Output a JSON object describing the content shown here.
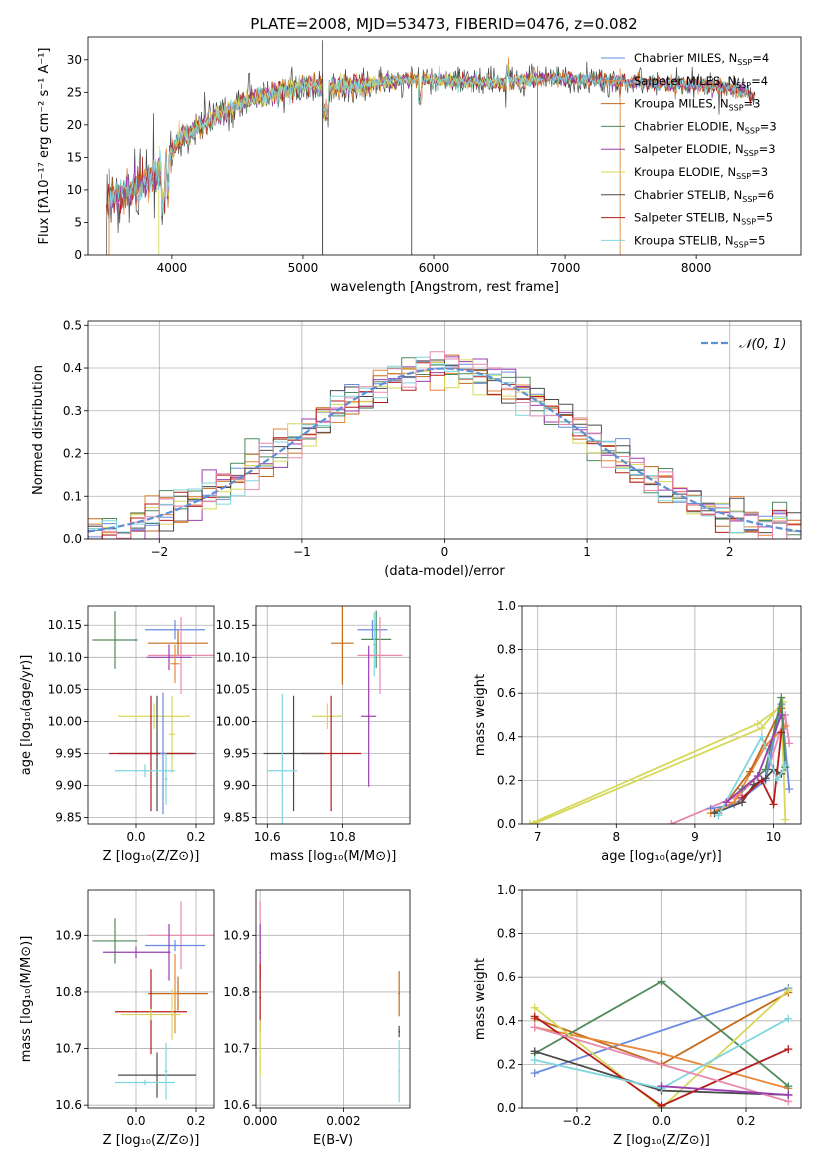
{
  "figure_title": "PLATE=2008, MJD=53473, FIBERID=0476, z=0.082",
  "colors": {
    "Chabrier MILES": "#6a8ae0",
    "Salpeter MILES": "#e7873a",
    "Kroupa MILES": "#c46a1c",
    "Chabrier ELODIE": "#4f8a5c",
    "Salpeter ELODIE": "#9a3fb0",
    "Kroupa ELODIE": "#d6d85a",
    "Chabrier STELIB": "#4a4a4a",
    "Salpeter STELIB": "#b51c1c",
    "Kroupa STELIB": "#7fd6dc",
    "pink": "#e88aaf",
    "normal_curve": "#5b8fd6",
    "grid": "#b0b0b0"
  },
  "chart_data": [
    {
      "id": "spectrum",
      "type": "line",
      "xlabel": "wavelength [Angstrom, rest frame]",
      "ylabel": "Flux [fλ10⁻¹⁷ erg cm⁻² s⁻¹ A⁻¹]",
      "xlim": [
        3360,
        8800
      ],
      "ylim": [
        0,
        33.5
      ],
      "xticks": [
        "4000",
        "5000",
        "6000",
        "7000",
        "8000"
      ],
      "yticks": [
        "0",
        "5",
        "10",
        "15",
        "20",
        "25",
        "30"
      ],
      "continuum": {
        "x": [
          3500,
          3700,
          3900,
          4050,
          4200,
          4400,
          4600,
          4800,
          5000,
          5200,
          5500,
          5800,
          6100,
          6500,
          6900,
          7300,
          7700,
          8000,
          8300,
          8450
        ],
        "y": [
          8.5,
          10.0,
          12.5,
          17.5,
          19.5,
          22.0,
          24.0,
          25.0,
          26.0,
          25.8,
          26.3,
          27.0,
          26.8,
          26.5,
          27.2,
          26.8,
          26.4,
          26.0,
          25.5,
          24.5
        ]
      },
      "legend": [
        {
          "name": "Chabrier MILES",
          "nssp": "4",
          "imf": "Chabrier",
          "lib": "MILES"
        },
        {
          "name": "Salpeter MILES",
          "nssp": "4",
          "imf": "Salpeter",
          "lib": "MILES"
        },
        {
          "name": "Kroupa MILES",
          "nssp": "3",
          "imf": "Kroupa",
          "lib": "MILES"
        },
        {
          "name": "Chabrier ELODIE",
          "nssp": "3",
          "imf": "Chabrier",
          "lib": "ELODIE"
        },
        {
          "name": "Salpeter ELODIE",
          "nssp": "3",
          "imf": "Salpeter",
          "lib": "ELODIE"
        },
        {
          "name": "Kroupa ELODIE",
          "nssp": "3",
          "imf": "Kroupa",
          "lib": "ELODIE"
        },
        {
          "name": "Chabrier STELIB",
          "nssp": "6",
          "imf": "Chabrier",
          "lib": "STELIB"
        },
        {
          "name": "Salpeter STELIB",
          "nssp": "5",
          "imf": "Salpeter",
          "lib": "STELIB"
        },
        {
          "name": "Kroupa STELIB",
          "nssp": "5",
          "imf": "Kroupa",
          "lib": "STELIB"
        }
      ]
    },
    {
      "id": "residuals",
      "type": "line",
      "xlabel": "(data-model)/error",
      "ylabel": "Normed distribution",
      "xlim": [
        -2.5,
        2.5
      ],
      "ylim": [
        0,
        0.51
      ],
      "xticks": [
        "−2",
        "−1",
        "0",
        "1",
        "2"
      ],
      "yticks": [
        "0.0",
        "0.1",
        "0.2",
        "0.3",
        "0.4",
        "0.5"
      ],
      "legend_label": "𝒩(0, 1)",
      "bin_width": 0.1
    },
    {
      "id": "age_vs_Z",
      "type": "scatter",
      "xlabel": "Z [log₁₀(Z/Z⊙)]",
      "ylabel": "age  [log₁₀(age/yr)]",
      "xlim": [
        -0.16,
        0.26
      ],
      "ylim": [
        9.84,
        10.18
      ],
      "xticks": [
        "0.0",
        "0.2"
      ],
      "yticks": [
        "9.85",
        "9.90",
        "9.95",
        "10.00",
        "10.05",
        "10.10",
        "10.15"
      ],
      "points": [
        {
          "series": "Chabrier ELODIE",
          "x": -0.07,
          "y": 10.127,
          "xerr": 0.075,
          "yerr": 0.045
        },
        {
          "series": "Chabrier MILES",
          "x": 0.13,
          "y": 10.143,
          "xerr": 0.1,
          "yerr": 0.015
        },
        {
          "series": "Kroupa MILES",
          "x": 0.14,
          "y": 10.122,
          "xerr": 0.1,
          "yerr": 0.02
        },
        {
          "series": "pink",
          "x": 0.15,
          "y": 10.103,
          "xerr": 0.11,
          "yerr": 0.06
        },
        {
          "series": "Salpeter ELODIE",
          "x": 0.11,
          "y": 10.1,
          "xerr": 0.075,
          "yerr": 0.02
        },
        {
          "series": "Salpeter MILES",
          "x": 0.13,
          "y": 10.09,
          "xerr": 0.015,
          "yerr": 0.03
        },
        {
          "series": "Kroupa ELODIE",
          "x": 0.06,
          "y": 10.008,
          "xerr": 0.12,
          "yerr": 0.02
        },
        {
          "series": "Kroupa ELODIE",
          "x": 0.12,
          "y": 9.98,
          "xerr": 0.01,
          "yerr": 0.06
        },
        {
          "series": "Chabrier STELIB",
          "x": 0.07,
          "y": 9.95,
          "xerr": 0.13,
          "yerr": 0.09
        },
        {
          "series": "Salpeter STELIB",
          "x": 0.05,
          "y": 9.95,
          "xerr": 0.14,
          "yerr": 0.09
        },
        {
          "series": "Chabrier MILES",
          "x": 0.09,
          "y": 9.95,
          "xerr": 0.01,
          "yerr": 0.095
        },
        {
          "series": "Kroupa STELIB",
          "x": 0.03,
          "y": 9.923,
          "xerr": 0.1,
          "yerr": 0.01
        },
        {
          "series": "Kroupa STELIB",
          "x": 0.1,
          "y": 9.91,
          "xerr": 0.005,
          "yerr": 0.04
        }
      ]
    },
    {
      "id": "age_vs_mass",
      "type": "scatter",
      "xlabel": "mass [log₁₀(M/M⊙)]",
      "ylabel": "",
      "xlim": [
        10.57,
        10.98
      ],
      "ylim": [
        9.84,
        10.18
      ],
      "xticks": [
        "10.6",
        "10.8"
      ],
      "yticks": [
        "9.85",
        "9.90",
        "9.95",
        "10.00",
        "10.05",
        "10.10",
        "10.15"
      ],
      "points": [
        {
          "series": "Chabrier MILES",
          "x": 10.88,
          "y": 10.143,
          "xerr": 0.04,
          "yerr": 0.015
        },
        {
          "series": "Chabrier ELODIE",
          "x": 10.89,
          "y": 10.128,
          "xerr": 0.04,
          "yerr": 0.045
        },
        {
          "series": "Kroupa STELIB",
          "x": 10.885,
          "y": 10.12,
          "xerr": 0.003,
          "yerr": 0.05
        },
        {
          "series": "Kroupa MILES",
          "x": 10.8,
          "y": 10.122,
          "xerr": 0.03,
          "yerr": 0.065
        },
        {
          "series": "pink",
          "x": 10.9,
          "y": 10.103,
          "xerr": 0.06,
          "yerr": 0.06
        },
        {
          "series": "Kroupa ELODIE",
          "x": 10.76,
          "y": 10.008,
          "xerr": 0.04,
          "yerr": 0.02
        },
        {
          "series": "Salpeter ELODIE",
          "x": 10.87,
          "y": 10.008,
          "xerr": 0.02,
          "yerr": 0.11
        },
        {
          "series": "Salpeter STELIB",
          "x": 10.77,
          "y": 9.95,
          "xerr": 0.08,
          "yerr": 0.09
        },
        {
          "series": "Chabrier STELIB",
          "x": 10.67,
          "y": 9.95,
          "xerr": 0.08,
          "yerr": 0.09
        },
        {
          "series": "Kroupa STELIB",
          "x": 10.64,
          "y": 9.923,
          "xerr": 0.04,
          "yerr": 0.12
        }
      ]
    },
    {
      "id": "weight_vs_age",
      "type": "line",
      "xlabel": "age  [log₁₀(age/yr)]",
      "ylabel": "mass weight",
      "xlim": [
        6.8,
        10.35
      ],
      "ylim": [
        0,
        1
      ],
      "xticks": [
        "7",
        "8",
        "9",
        "10"
      ],
      "yticks": [
        "0.0",
        "0.2",
        "0.4",
        "0.6",
        "0.8",
        "1.0"
      ],
      "series": [
        {
          "name": "Kroupa ELODIE",
          "x": [
            6.9,
            9.8,
            10.1,
            10.15
          ],
          "y": [
            0.0,
            0.46,
            0.54,
            0.02
          ]
        },
        {
          "name": "Kroupa ELODIE",
          "x": [
            6.95,
            9.85,
            10.12
          ],
          "y": [
            0.0,
            0.44,
            0.56
          ]
        },
        {
          "name": "pink",
          "x": [
            8.7,
            9.55,
            9.95,
            10.15,
            10.2
          ],
          "y": [
            0.0,
            0.13,
            0.27,
            0.5,
            0.37
          ]
        },
        {
          "name": "Chabrier MILES",
          "x": [
            9.2,
            9.5,
            9.9,
            10.1,
            10.2
          ],
          "y": [
            0.07,
            0.09,
            0.2,
            0.55,
            0.16
          ]
        },
        {
          "name": "Salpeter MILES",
          "x": [
            9.2,
            9.5,
            9.9,
            10.15
          ],
          "y": [
            0.05,
            0.1,
            0.36,
            0.45
          ]
        },
        {
          "name": "Kroupa MILES",
          "x": [
            9.3,
            9.7,
            10.1
          ],
          "y": [
            0.05,
            0.24,
            0.53
          ]
        },
        {
          "name": "Chabrier ELODIE",
          "x": [
            9.6,
            9.9,
            10.1,
            10.15
          ],
          "y": [
            0.16,
            0.25,
            0.58,
            0.26
          ]
        },
        {
          "name": "Chabrier STELIB",
          "x": [
            9.25,
            9.6,
            9.75,
            9.9,
            10.0,
            10.1
          ],
          "y": [
            0.05,
            0.1,
            0.18,
            0.21,
            0.25,
            0.23
          ]
        },
        {
          "name": "Salpeter STELIB",
          "x": [
            9.6,
            9.85,
            10.0,
            10.1
          ],
          "y": [
            0.12,
            0.2,
            0.09,
            0.42
          ]
        },
        {
          "name": "Kroupa STELIB",
          "x": [
            9.3,
            9.85,
            10.05,
            10.15
          ],
          "y": [
            0.04,
            0.4,
            0.2,
            0.27
          ]
        },
        {
          "name": "Salpeter ELODIE",
          "x": [
            9.4,
            9.8,
            10.1
          ],
          "y": [
            0.1,
            0.22,
            0.5
          ]
        }
      ]
    },
    {
      "id": "mass_vs_Z",
      "type": "scatter",
      "xlabel": "Z [log₁₀(Z/Z⊙)]",
      "ylabel": "mass [log₁₀(M/M⊙)]",
      "xlim": [
        -0.16,
        0.26
      ],
      "ylim": [
        10.595,
        10.98
      ],
      "xticks": [
        "0.0",
        "0.2"
      ],
      "yticks": [
        "10.6",
        "10.7",
        "10.8",
        "10.9"
      ],
      "points": [
        {
          "series": "Chabrier ELODIE",
          "x": -0.07,
          "y": 10.89,
          "xerr": 0.075,
          "yerr": 0.04
        },
        {
          "series": "pink",
          "x": 0.15,
          "y": 10.9,
          "xerr": 0.11,
          "yerr": 0.06
        },
        {
          "series": "Chabrier MILES",
          "x": 0.13,
          "y": 10.882,
          "xerr": 0.1,
          "yerr": 0.01
        },
        {
          "series": "Salpeter ELODIE",
          "x": 0.0,
          "y": 10.87,
          "xerr": 0.11,
          "yerr": 0.01
        },
        {
          "series": "Salpeter ELODIE",
          "x": 0.11,
          "y": 10.87,
          "xerr": 0.005,
          "yerr": 0.05
        },
        {
          "series": "Kroupa MILES",
          "x": 0.14,
          "y": 10.797,
          "xerr": 0.1,
          "yerr": 0.03
        },
        {
          "series": "Salpeter MILES",
          "x": 0.13,
          "y": 10.797,
          "xerr": 0.01,
          "yerr": 0.07
        },
        {
          "series": "Salpeter STELIB",
          "x": 0.05,
          "y": 10.765,
          "xerr": 0.12,
          "yerr": 0.075
        },
        {
          "series": "Kroupa ELODIE",
          "x": 0.05,
          "y": 10.76,
          "xerr": 0.1,
          "yerr": 0.01
        },
        {
          "series": "Kroupa ELODIE",
          "x": 0.12,
          "y": 10.76,
          "xerr": 0.005,
          "yerr": 0.045
        },
        {
          "series": "Chabrier STELIB",
          "x": 0.07,
          "y": 10.653,
          "xerr": 0.13,
          "yerr": 0.04
        },
        {
          "series": "Kroupa STELIB",
          "x": 0.03,
          "y": 10.64,
          "xerr": 0.1,
          "yerr": 0.005
        },
        {
          "series": "Kroupa STELIB",
          "x": 0.1,
          "y": 10.66,
          "xerr": 0.005,
          "yerr": 0.05
        }
      ]
    },
    {
      "id": "mass_vs_ebv",
      "type": "scatter",
      "xlabel": "E(B-V)",
      "ylabel": "",
      "xlim": [
        -0.0001,
        0.0036
      ],
      "ylim": [
        10.595,
        10.98
      ],
      "xticks": [
        "0.000",
        "0.002"
      ],
      "yticks": [
        "10.6",
        "10.7",
        "10.8",
        "10.9"
      ],
      "points": [
        {
          "series": "pink",
          "x": 0.0,
          "y": 10.9,
          "xerr": 0.0,
          "yerr": 0.06
        },
        {
          "series": "Salpeter ELODIE",
          "x": 0.0,
          "y": 10.87,
          "xerr": 0.0,
          "yerr": 0.05
        },
        {
          "series": "Salpeter STELIB",
          "x": 0.0,
          "y": 10.79,
          "xerr": 0.0,
          "yerr": 0.06
        },
        {
          "series": "Kroupa ELODIE",
          "x": 0.0,
          "y": 10.7,
          "xerr": 0.0,
          "yerr": 0.05
        },
        {
          "series": "Kroupa MILES",
          "x": 0.00334,
          "y": 10.797,
          "xerr": 0.0,
          "yerr": 0.04
        },
        {
          "series": "Chabrier STELIB",
          "x": 0.00334,
          "y": 10.73,
          "xerr": 0.0,
          "yerr": 0.01
        },
        {
          "series": "Kroupa STELIB",
          "x": 0.00334,
          "y": 10.66,
          "xerr": 0.0,
          "yerr": 0.055
        }
      ]
    },
    {
      "id": "weight_vs_Z",
      "type": "line",
      "xlabel": "Z [log₁₀(Z/Z⊙)]",
      "ylabel": "mass weight",
      "xlim": [
        -0.33,
        0.33
      ],
      "ylim": [
        0,
        1
      ],
      "xticks": [
        "−0.2",
        "0.0",
        "0.2"
      ],
      "yticks": [
        "0.0",
        "0.2",
        "0.4",
        "0.6",
        "0.8",
        "1.0"
      ],
      "series": [
        {
          "name": "Chabrier MILES",
          "x": [
            -0.3,
            0.3
          ],
          "y": [
            0.16,
            0.55
          ]
        },
        {
          "name": "Kroupa MILES",
          "x": [
            -0.3,
            0.0,
            0.3
          ],
          "y": [
            0.41,
            0.2,
            0.53
          ]
        },
        {
          "name": "Salpeter MILES",
          "x": [
            -0.3,
            0.0,
            0.3
          ],
          "y": [
            0.37,
            0.25,
            0.09
          ]
        },
        {
          "name": "Chabrier ELODIE",
          "x": [
            -0.3,
            0.0,
            0.3
          ],
          "y": [
            0.25,
            0.58,
            0.1
          ]
        },
        {
          "name": "Kroupa ELODIE",
          "x": [
            -0.3,
            0.0,
            0.3
          ],
          "y": [
            0.46,
            0.0,
            0.54
          ]
        },
        {
          "name": "Chabrier STELIB",
          "x": [
            -0.3,
            0.0,
            0.3
          ],
          "y": [
            0.26,
            0.08,
            0.06
          ]
        },
        {
          "name": "Salpeter STELIB",
          "x": [
            -0.3,
            0.0,
            0.3
          ],
          "y": [
            0.42,
            0.01,
            0.27
          ]
        },
        {
          "name": "Kroupa STELIB",
          "x": [
            -0.3,
            0.0,
            0.3
          ],
          "y": [
            0.22,
            0.09,
            0.41
          ]
        },
        {
          "name": "pink",
          "x": [
            -0.3,
            0.3
          ],
          "y": [
            0.37,
            0.03
          ]
        },
        {
          "name": "Salpeter ELODIE",
          "x": [
            0.0,
            0.3
          ],
          "y": [
            0.1,
            0.06
          ]
        }
      ]
    }
  ]
}
